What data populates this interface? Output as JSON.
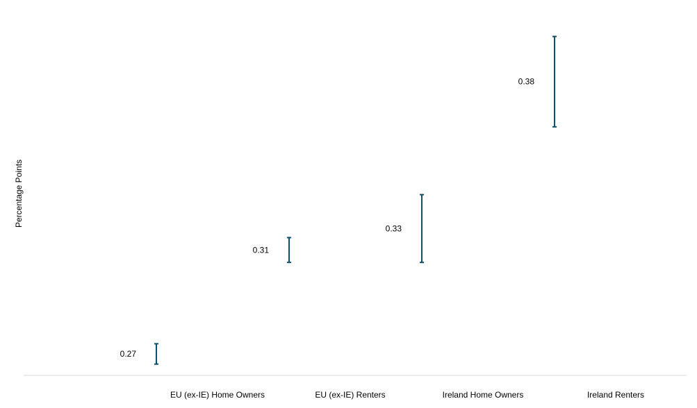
{
  "chart_data": {
    "type": "error-bar",
    "categories": [
      "EU (ex-IE) Home Owners",
      "EU (ex-IE) Renters",
      "Ireland Home Owners",
      "Ireland Renters"
    ],
    "series": [
      {
        "estimate": [
          0.27,
          0.31,
          0.33,
          0.38
        ],
        "low": [
          0.255,
          0.3,
          0.3,
          0.36
        ],
        "high": [
          0.264,
          0.311,
          0.33,
          0.4
        ]
      }
    ],
    "data_labels": [
      "0.27",
      "0.31",
      "0.33",
      "0.38"
    ],
    "title": "",
    "xlabel": "",
    "ylabel": "Percentage Points",
    "ylim": [
      0.25,
      0.41
    ],
    "grid": false,
    "colors": {
      "bar": "#0b4f6c",
      "axis": "#d9d9d9",
      "text": "#000000"
    }
  }
}
